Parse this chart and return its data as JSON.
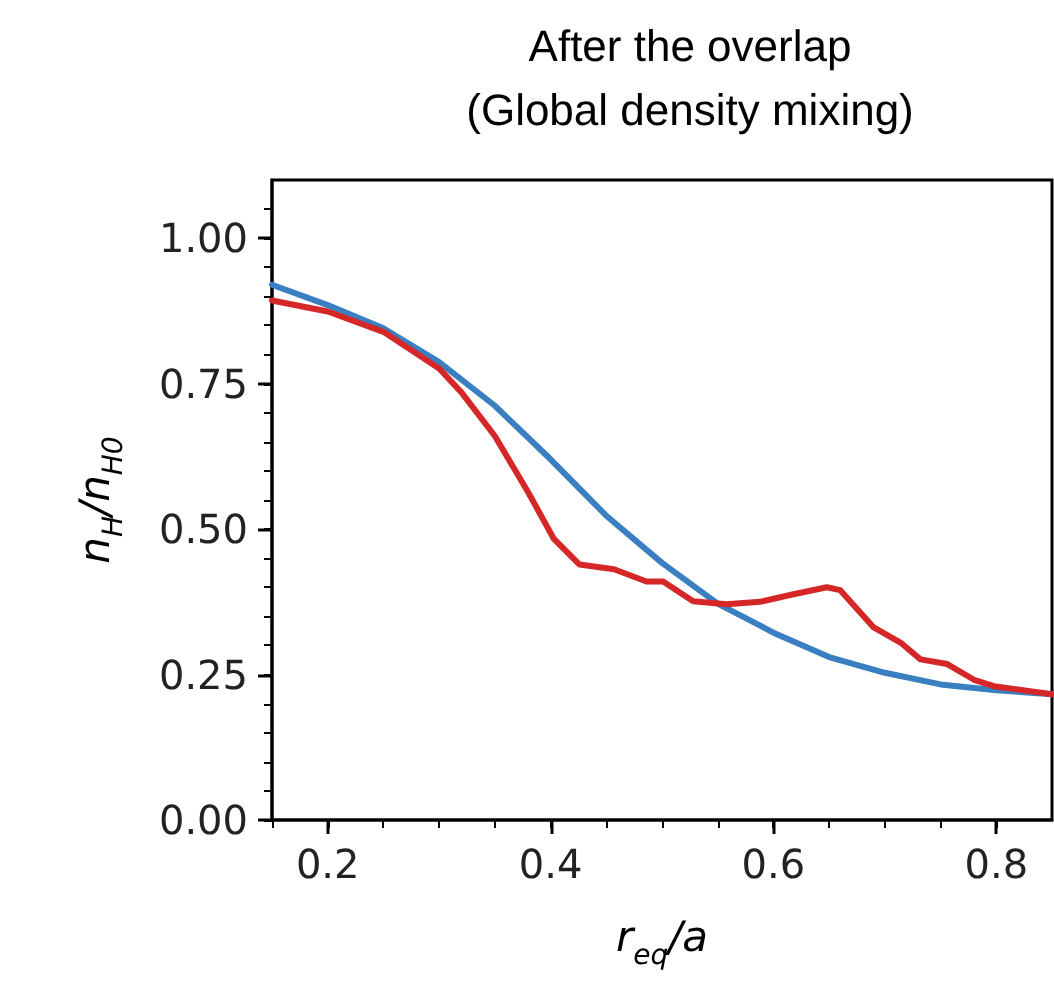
{
  "chart_data": {
    "type": "line",
    "title": "After the overlap\n(Global density mixing)",
    "xlabel": "r$_{eq}$/a",
    "ylabel": "n$_{H}$/n$_{H0}$",
    "xlim": [
      0.15,
      0.85
    ],
    "xticks": [
      0.2,
      0.4,
      0.6,
      0.8
    ],
    "ylim": [
      0,
      1.1
    ],
    "yticks": [
      {
        "value": 0,
        "label": "0.00"
      },
      0.25,
      {
        "value": 0.5,
        "label": "0.50"
      },
      0.75,
      {
        "value": 1,
        "label": "1.00"
      }
    ],
    "grid": false,
    "marker": "none",
    "line_style": "solid",
    "series": [
      {
        "color": "#3a7fc2",
        "x": [
          0.15,
          0.2,
          0.25,
          0.3,
          0.35,
          0.4,
          0.45,
          0.5,
          0.55,
          0.6,
          0.65,
          0.7,
          0.75,
          0.8,
          0.85
        ],
        "values": [
          0.92,
          0.885,
          0.845,
          0.787,
          0.712,
          0.62,
          0.523,
          0.442,
          0.372,
          0.322,
          0.28,
          0.253,
          0.233,
          0.223,
          0.216
        ]
      },
      {
        "color": "#d62728",
        "x": [
          0.15,
          0.2,
          0.25,
          0.3,
          0.32,
          0.35,
          0.38,
          0.403,
          0.426,
          0.457,
          0.486,
          0.501,
          0.528,
          0.558,
          0.588,
          0.618,
          0.648,
          0.66,
          0.69,
          0.714,
          0.732,
          0.756,
          0.78,
          0.798,
          0.85
        ],
        "values": [
          0.893,
          0.874,
          0.839,
          0.776,
          0.735,
          0.66,
          0.563,
          0.483,
          0.439,
          0.431,
          0.41,
          0.41,
          0.376,
          0.371,
          0.375,
          0.388,
          0.4,
          0.395,
          0.331,
          0.305,
          0.276,
          0.268,
          0.241,
          0.23,
          0.216
        ]
      }
    ]
  }
}
